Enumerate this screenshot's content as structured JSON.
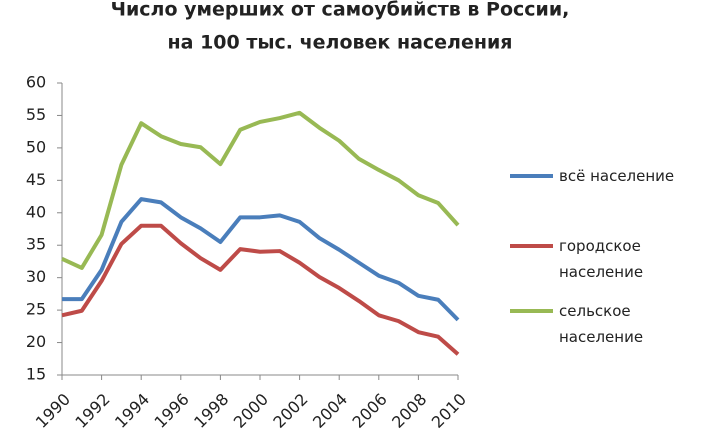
{
  "chart_data": {
    "type": "line",
    "title": "Число умерших от самоубийств в России,",
    "subtitle": "на 100 тыс. человек населения",
    "x": [
      1990,
      1991,
      1992,
      1993,
      1994,
      1995,
      1996,
      1997,
      1998,
      1999,
      2000,
      2001,
      2002,
      2003,
      2004,
      2005,
      2006,
      2007,
      2008,
      2009,
      2010
    ],
    "series": [
      {
        "name": "всё население",
        "color": "#4a7ebb",
        "values": [
          26.7,
          26.7,
          31.2,
          38.6,
          42.1,
          41.6,
          39.3,
          37.6,
          35.5,
          39.3,
          39.3,
          39.6,
          38.6,
          36.1,
          34.3,
          32.3,
          30.3,
          29.2,
          27.2,
          26.6,
          23.5
        ]
      },
      {
        "name": "городское население",
        "color": "#be4b48",
        "values": [
          24.2,
          24.9,
          29.5,
          35.2,
          38.0,
          38.0,
          35.3,
          33.0,
          31.2,
          34.4,
          34.0,
          34.1,
          32.3,
          30.1,
          28.4,
          26.4,
          24.2,
          23.3,
          21.6,
          20.9,
          18.2
        ]
      },
      {
        "name": "сельское население",
        "color": "#98b954",
        "values": [
          32.9,
          31.5,
          36.6,
          47.4,
          53.8,
          51.8,
          50.6,
          50.1,
          47.5,
          52.8,
          54.0,
          54.6,
          55.4,
          53.1,
          51.1,
          48.3,
          46.6,
          45.0,
          42.7,
          41.5,
          38.1
        ]
      }
    ],
    "xlim": [
      1990,
      2010
    ],
    "xticks": [
      1990,
      1992,
      1994,
      1996,
      1998,
      2000,
      2002,
      2004,
      2006,
      2008,
      2010
    ],
    "ylim": [
      15,
      60
    ],
    "yticks": [
      15,
      20,
      25,
      30,
      35,
      40,
      45,
      50,
      55,
      60
    ],
    "legend": "right"
  }
}
